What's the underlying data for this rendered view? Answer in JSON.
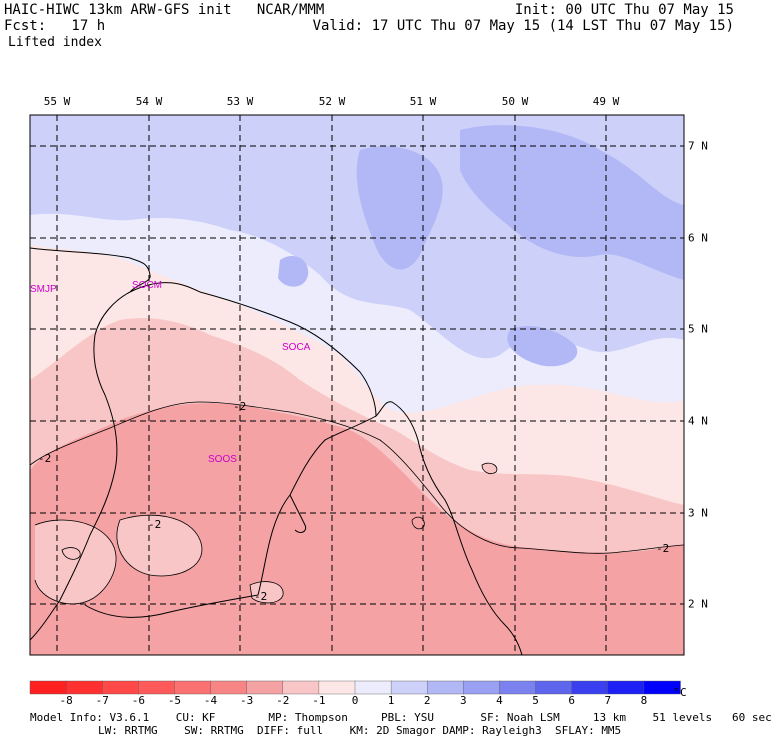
{
  "header": {
    "title": "HAIC-HIWC 13km ARW-GFS init   NCAR/MMM",
    "init": "Init: 00 UTC Thu 07 May 15",
    "fcst": "Fcst:   17 h",
    "valid": "Valid: 17 UTC Thu 07 May 15 (14 LST Thu 07 May 15)",
    "field": "Lifted index"
  },
  "map": {
    "lon_labels": [
      "55 W",
      "54 W",
      "53 W",
      "52 W",
      "51 W",
      "50 W",
      "49 W"
    ],
    "lat_labels": [
      "7 N",
      "6 N",
      "5 N",
      "4 N",
      "3 N",
      "2 N"
    ],
    "stations": [
      "SMJP",
      "SOCM",
      "SOCA",
      "SOOS"
    ],
    "contour_labels": [
      "-2",
      "-2",
      "-2",
      "-2",
      "-2"
    ],
    "colors": {
      "neg_strong": "#f4a2a4",
      "neg_mid": "#f8c6c6",
      "neg_light": "#fde6e6",
      "pos_light": "#ececfd",
      "pos_mid": "#cdd0f8",
      "pos_strong": "#b2b8f5",
      "station": "#cc00cc"
    }
  },
  "colorbar": {
    "labels": [
      "-8",
      "-7",
      "-6",
      "-5",
      "-4",
      "-3",
      "-2",
      "-1",
      "0",
      "1",
      "2",
      "3",
      "4",
      "5",
      "6",
      "7",
      "8"
    ],
    "unit": "°C",
    "colors": [
      "#ff2020",
      "#ff3030",
      "#ff4848",
      "#ff5a5a",
      "#fb7070",
      "#f88585",
      "#f4a2a4",
      "#f8c6c6",
      "#fde6e6",
      "#ececfd",
      "#cdd0f8",
      "#b2b8f5",
      "#9aa0f2",
      "#7b82ef",
      "#5f66ee",
      "#3a40f0",
      "#1c20f4",
      "#0000ff"
    ]
  },
  "footer": {
    "line1": "Model Info: V3.6.1    CU: KF        MP: Thompson     PBL: YSU       SF: Noah LSM     13 km    51 levels   60 sec",
    "line2": "LW: RRTMG    SW: RRTMG  DIFF: full    KM: 2D Smagor DAMP: Rayleigh3  SFLAY: MM5"
  }
}
